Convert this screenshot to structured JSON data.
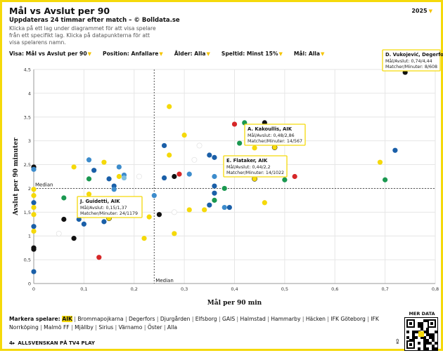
{
  "header": {
    "title": "Mål vs Avslut per 90",
    "subtitle": "Uppdateras 24 timmar efter match – © Bolldata.se",
    "description": "Klicka på ett lag under diagrammet för att visa spelare från ett specifikt lag. Klicka på datapunkterna för att visa spelarens namn.",
    "year": "2025"
  },
  "filters": [
    {
      "label": "Visa:",
      "value": "Mål vs Avslut per 90"
    },
    {
      "label": "Position:",
      "value": "Anfallare"
    },
    {
      "label": "Ålder:",
      "value": "Alla"
    },
    {
      "label": "Speltid:",
      "value": "Minst 15%"
    },
    {
      "label": "Mål:",
      "value": "Alla"
    }
  ],
  "chart_data": {
    "type": "scatter",
    "xlabel": "Mål per 90 min",
    "ylabel": "Avslut per 90 minuter",
    "xlim": [
      0,
      0.8
    ],
    "ylim": [
      0,
      4.5
    ],
    "xticks": [
      "0",
      "0,1",
      "0,2",
      "0,3",
      "0,4",
      "0,5",
      "0,6",
      "0,7",
      "0,8"
    ],
    "yticks": [
      "0",
      "0,5",
      "1",
      "1,5",
      "2",
      "2,5",
      "3",
      "3,5",
      "4",
      "4,5"
    ],
    "median_x": 0.24,
    "median_y": 2.0,
    "median_label_x": "Median",
    "median_label_y": "Median",
    "grid": true,
    "points": [
      {
        "x": 0.0,
        "y": 2.45,
        "c": "#111111"
      },
      {
        "x": 0.0,
        "y": 2.4,
        "c": "#3d8ccc"
      },
      {
        "x": 0.0,
        "y": 1.98,
        "c": "#f5d90a"
      },
      {
        "x": 0.0,
        "y": 1.85,
        "c": "#f5d90a"
      },
      {
        "x": 0.0,
        "y": 1.7,
        "c": "#1a5fa8"
      },
      {
        "x": 0.0,
        "y": 1.6,
        "c": "#f5d90a"
      },
      {
        "x": 0.0,
        "y": 1.45,
        "c": "#f5d90a"
      },
      {
        "x": 0.0,
        "y": 1.2,
        "c": "#1a5fa8"
      },
      {
        "x": 0.0,
        "y": 1.1,
        "c": "#f5d90a"
      },
      {
        "x": 0.0,
        "y": 0.75,
        "c": "#111111"
      },
      {
        "x": 0.0,
        "y": 0.72,
        "c": "#111111"
      },
      {
        "x": 0.0,
        "y": 0.25,
        "c": "#1a5fa8"
      },
      {
        "x": 0.05,
        "y": 1.05,
        "c": "#ffffff"
      },
      {
        "x": 0.06,
        "y": 1.8,
        "c": "#1a9850"
      },
      {
        "x": 0.06,
        "y": 1.35,
        "c": "#111111"
      },
      {
        "x": 0.08,
        "y": 2.45,
        "c": "#f5d90a"
      },
      {
        "x": 0.08,
        "y": 0.95,
        "c": "#111111"
      },
      {
        "x": 0.09,
        "y": 1.35,
        "c": "#1a5fa8"
      },
      {
        "x": 0.1,
        "y": 1.25,
        "c": "#1a5fa8"
      },
      {
        "x": 0.11,
        "y": 2.6,
        "c": "#3d8ccc"
      },
      {
        "x": 0.11,
        "y": 2.2,
        "c": "#1a9850"
      },
      {
        "x": 0.11,
        "y": 1.88,
        "c": "#f5d90a"
      },
      {
        "x": 0.12,
        "y": 2.38,
        "c": "#1a5fa8"
      },
      {
        "x": 0.12,
        "y": 1.55,
        "c": "#ffffff"
      },
      {
        "x": 0.13,
        "y": 0.55,
        "c": "#d62728"
      },
      {
        "x": 0.14,
        "y": 2.55,
        "c": "#f5d90a"
      },
      {
        "x": 0.14,
        "y": 1.3,
        "c": "#1a5fa8"
      },
      {
        "x": 0.15,
        "y": 2.2,
        "c": "#1a5fa8"
      },
      {
        "x": 0.15,
        "y": 1.5,
        "c": "#1a9850"
      },
      {
        "x": 0.16,
        "y": 2.05,
        "c": "#1a5fa8"
      },
      {
        "x": 0.16,
        "y": 1.98,
        "c": "#3d8ccc"
      },
      {
        "x": 0.17,
        "y": 2.45,
        "c": "#3d8ccc"
      },
      {
        "x": 0.17,
        "y": 2.25,
        "c": "#f5d90a"
      },
      {
        "x": 0.17,
        "y": 1.65,
        "c": "#1a9850"
      },
      {
        "x": 0.18,
        "y": 2.28,
        "c": "#3d8ccc"
      },
      {
        "x": 0.18,
        "y": 2.22,
        "c": "#7fbfdf"
      },
      {
        "x": 0.2,
        "y": 1.45,
        "c": "#1a5fa8"
      },
      {
        "x": 0.21,
        "y": 2.25,
        "c": "#ffffff"
      },
      {
        "x": 0.21,
        "y": 1.75,
        "c": "#f5d90a"
      },
      {
        "x": 0.22,
        "y": 0.95,
        "c": "#f5d90a"
      },
      {
        "x": 0.23,
        "y": 1.4,
        "c": "#f5d90a"
      },
      {
        "x": 0.24,
        "y": 1.85,
        "c": "#3d8ccc"
      },
      {
        "x": 0.25,
        "y": 1.45,
        "c": "#111111"
      },
      {
        "x": 0.26,
        "y": 2.9,
        "c": "#1a5fa8"
      },
      {
        "x": 0.26,
        "y": 2.22,
        "c": "#1a5fa8"
      },
      {
        "x": 0.27,
        "y": 3.72,
        "c": "#f5d90a"
      },
      {
        "x": 0.27,
        "y": 2.7,
        "c": "#f5d90a"
      },
      {
        "x": 0.28,
        "y": 2.25,
        "c": "#111111"
      },
      {
        "x": 0.28,
        "y": 1.05,
        "c": "#f5d90a"
      },
      {
        "x": 0.28,
        "y": 1.5,
        "c": "#ffffff"
      },
      {
        "x": 0.29,
        "y": 2.3,
        "c": "#d62728"
      },
      {
        "x": 0.3,
        "y": 3.12,
        "c": "#f5d90a"
      },
      {
        "x": 0.31,
        "y": 2.3,
        "c": "#3d8ccc"
      },
      {
        "x": 0.31,
        "y": 1.55,
        "c": "#f5d90a"
      },
      {
        "x": 0.32,
        "y": 2.6,
        "c": "#ffffff"
      },
      {
        "x": 0.33,
        "y": 2.9,
        "c": "#ffffff"
      },
      {
        "x": 0.34,
        "y": 1.55,
        "c": "#f5d90a"
      },
      {
        "x": 0.35,
        "y": 1.65,
        "c": "#1a5fa8"
      },
      {
        "x": 0.35,
        "y": 2.7,
        "c": "#1a5fa8"
      },
      {
        "x": 0.36,
        "y": 2.65,
        "c": "#1a5fa8"
      },
      {
        "x": 0.36,
        "y": 2.05,
        "c": "#1a5fa8"
      },
      {
        "x": 0.36,
        "y": 1.9,
        "c": "#1a5fa8"
      },
      {
        "x": 0.36,
        "y": 1.75,
        "c": "#1a9850"
      },
      {
        "x": 0.36,
        "y": 2.25,
        "c": "#3d8ccc"
      },
      {
        "x": 0.38,
        "y": 2.0,
        "c": "#1a9850"
      },
      {
        "x": 0.38,
        "y": 1.6,
        "c": "#3d8ccc"
      },
      {
        "x": 0.39,
        "y": 1.6,
        "c": "#1a5fa8"
      },
      {
        "x": 0.4,
        "y": 3.35,
        "c": "#d62728"
      },
      {
        "x": 0.41,
        "y": 2.95,
        "c": "#1a9850"
      },
      {
        "x": 0.41,
        "y": 2.55,
        "c": "#1a9850"
      },
      {
        "x": 0.42,
        "y": 3.38,
        "c": "#1a9850"
      },
      {
        "x": 0.44,
        "y": 2.2,
        "c": "#f5d90a"
      },
      {
        "x": 0.44,
        "y": 2.85,
        "c": "#f5d90a"
      },
      {
        "x": 0.46,
        "y": 3.38,
        "c": "#111111"
      },
      {
        "x": 0.46,
        "y": 1.7,
        "c": "#f5d90a"
      },
      {
        "x": 0.5,
        "y": 2.18,
        "c": "#1a9850"
      },
      {
        "x": 0.52,
        "y": 2.25,
        "c": "#d62728"
      },
      {
        "x": 0.69,
        "y": 2.55,
        "c": "#f5d90a"
      },
      {
        "x": 0.7,
        "y": 2.18,
        "c": "#1a9850"
      },
      {
        "x": 0.72,
        "y": 2.8,
        "c": "#1a5fa8"
      },
      {
        "x": 0.74,
        "y": 4.44,
        "c": "#111111"
      }
    ],
    "annotations": [
      {
        "name": "D. Vukojević, Degerfors",
        "l1": "Mål/Avslut: 0,74/4,44",
        "l2": "Matcher/Minuter: 8/608",
        "x": 0.74,
        "y": 4.44
      },
      {
        "name": "A. Kakoullis, AIK",
        "l1": "Mål/Avslut: 0,48/2,86",
        "l2": "Matcher/Minuter: 14/567",
        "x": 0.48,
        "y": 2.86
      },
      {
        "name": "E. Flataker, AIK",
        "l1": "Mål/Avslut: 0,44/2,2",
        "l2": "Matcher/Minuter: 14/1022",
        "x": 0.44,
        "y": 2.2
      },
      {
        "name": "J. Guidetti, AIK",
        "l1": "Mål/Avslut: 0,15/1,37",
        "l2": "Matcher/Minuter: 24/1179",
        "x": 0.15,
        "y": 1.37
      }
    ],
    "highlight": [
      {
        "x": 0.48,
        "y": 2.86
      },
      {
        "x": 0.44,
        "y": 2.2
      },
      {
        "x": 0.15,
        "y": 1.37
      }
    ]
  },
  "teams": {
    "lead": "Markera spelare:",
    "active": "AIK",
    "list": [
      "Brommapojkarna",
      "Degerfors",
      "Djurgården",
      "Elfsborg",
      "GAIS",
      "Halmstad",
      "Hammarby",
      "Häcken",
      "IFK Göteborg",
      "IFK Norrköping",
      "Malmö FF",
      "Mjällby",
      "Sirius",
      "Värnamo",
      "Öster",
      "Alla"
    ]
  },
  "qr": {
    "label": "MER DATA"
  },
  "footer": {
    "text": "ALLSVENSKAN PÅ TV4 PLAY"
  },
  "colors": {
    "accent": "#f5d90a"
  }
}
